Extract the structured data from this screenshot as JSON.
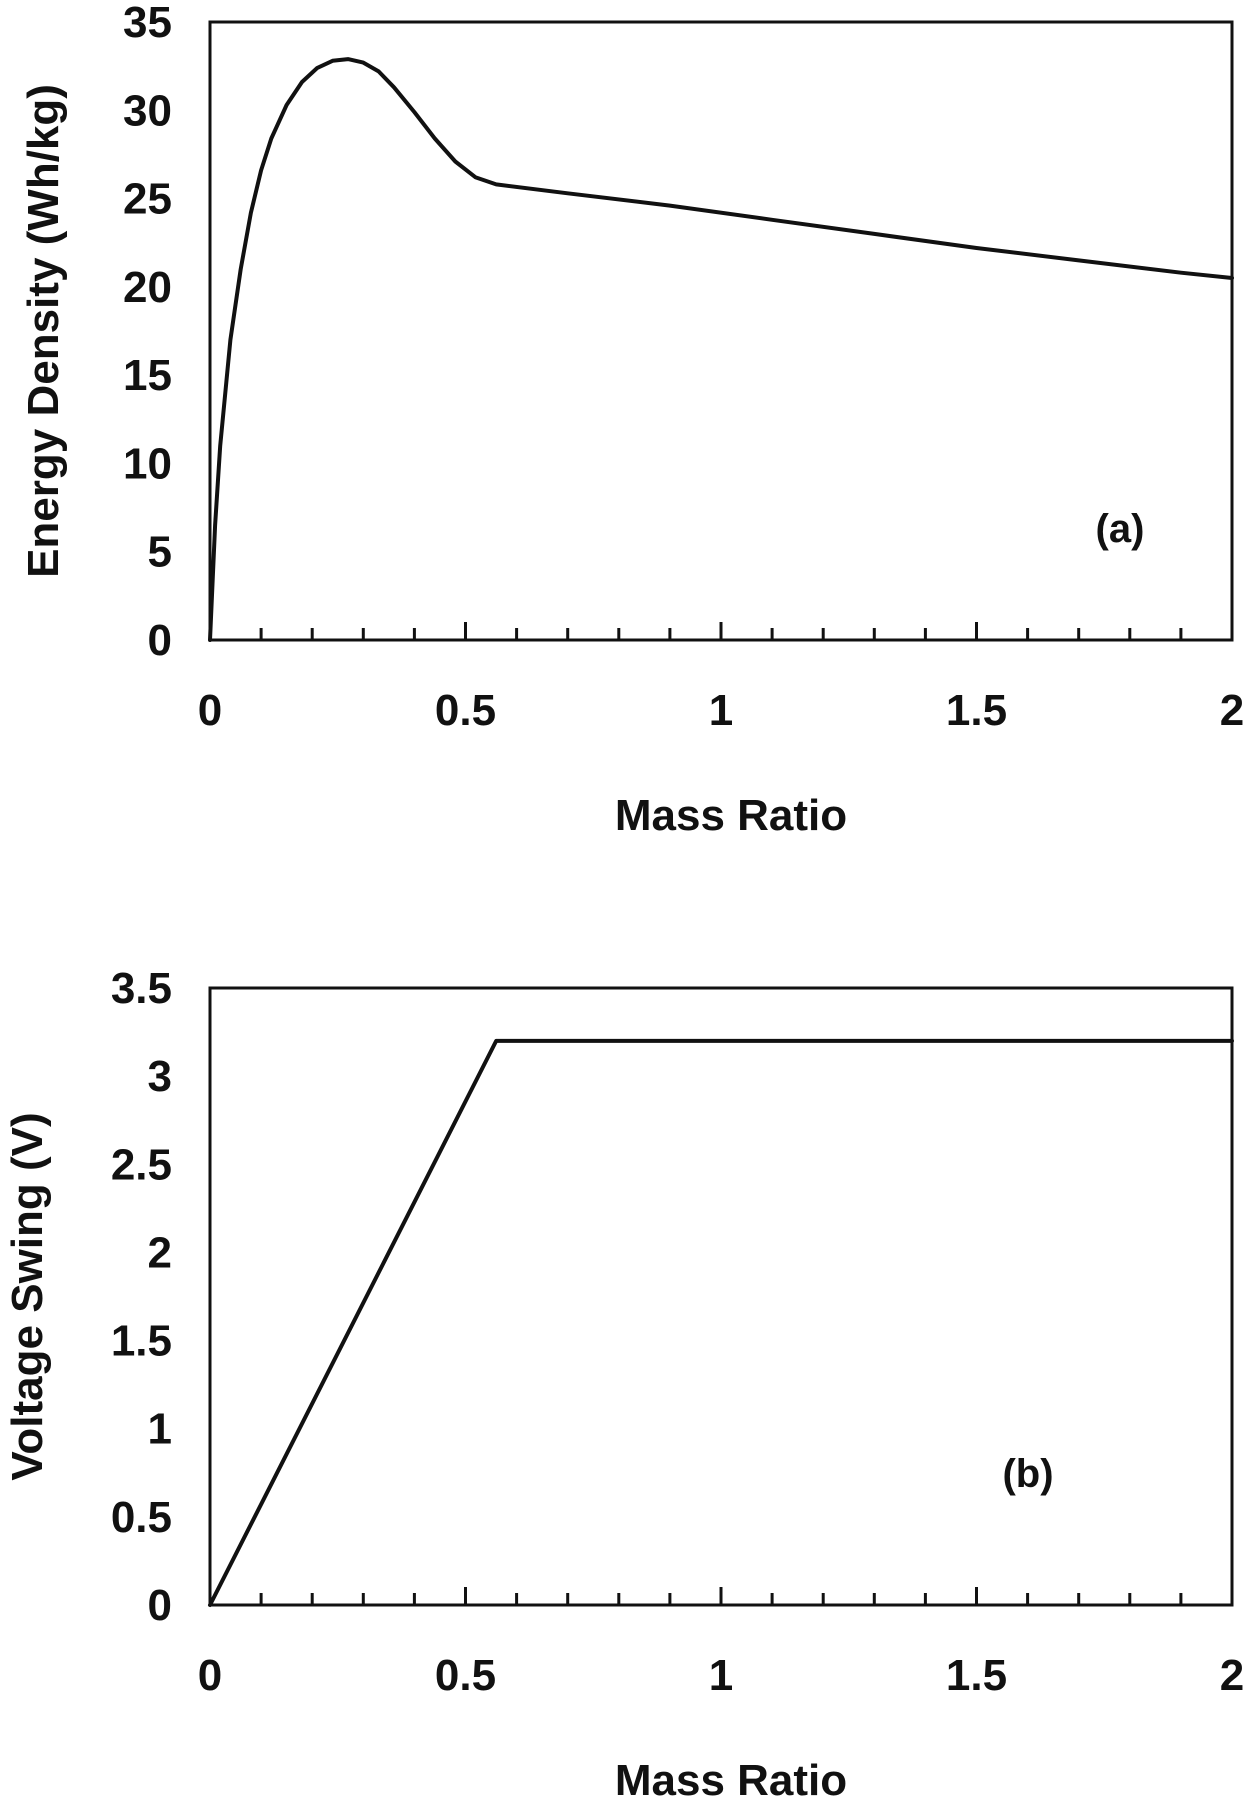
{
  "chart_data": [
    {
      "type": "line",
      "panel_label": "(a)",
      "xlabel": "Mass Ratio",
      "ylabel": "Energy Density (Wh/kg)",
      "xlim": [
        0,
        2
      ],
      "ylim": [
        0,
        35
      ],
      "xticks": [
        "0",
        "0.5",
        "1",
        "1.5",
        "2"
      ],
      "yticks": [
        "0",
        "5",
        "10",
        "15",
        "20",
        "25",
        "30",
        "35"
      ],
      "xtick_values": [
        0,
        0.5,
        1,
        1.5,
        2
      ],
      "ytick_values": [
        0,
        5,
        10,
        15,
        20,
        25,
        30,
        35
      ],
      "x_minor_step": 0.1,
      "grid": false,
      "series": [
        {
          "x": [
            0,
            0.01,
            0.02,
            0.04,
            0.06,
            0.08,
            0.1,
            0.12,
            0.15,
            0.18,
            0.21,
            0.24,
            0.27,
            0.3,
            0.33,
            0.36,
            0.4,
            0.44,
            0.48,
            0.52,
            0.56,
            0.7,
            0.9,
            1.1,
            1.3,
            1.5,
            1.7,
            1.9,
            2.0
          ],
          "y": [
            0,
            6.5,
            11,
            17,
            21,
            24.2,
            26.6,
            28.4,
            30.3,
            31.6,
            32.4,
            32.8,
            32.9,
            32.7,
            32.2,
            31.3,
            29.9,
            28.4,
            27.1,
            26.2,
            25.8,
            25.3,
            24.6,
            23.8,
            23.0,
            22.2,
            21.5,
            20.8,
            20.5
          ]
        }
      ]
    },
    {
      "type": "line",
      "panel_label": "(b)",
      "xlabel": "Mass Ratio",
      "ylabel": "Voltage Swing (V)",
      "xlim": [
        0,
        2
      ],
      "ylim": [
        0,
        3.5
      ],
      "xticks": [
        "0",
        "0.5",
        "1",
        "1.5",
        "2"
      ],
      "yticks": [
        "0",
        "0.5",
        "1",
        "1.5",
        "2",
        "2.5",
        "3",
        "3.5"
      ],
      "xtick_values": [
        0,
        0.5,
        1,
        1.5,
        2
      ],
      "ytick_values": [
        0,
        0.5,
        1,
        1.5,
        2,
        2.5,
        3,
        3.5
      ],
      "x_minor_step": 0.1,
      "grid": false,
      "series": [
        {
          "x": [
            0,
            0.56,
            2.0
          ],
          "y": [
            0,
            3.2,
            3.2
          ]
        }
      ]
    }
  ]
}
